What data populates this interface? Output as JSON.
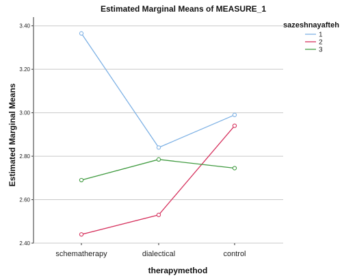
{
  "chart_data": {
    "type": "line",
    "title": "Estimated Marginal Means of MEASURE_1",
    "xlabel": "therapymethod",
    "ylabel": "Estimated Marginal Means",
    "categories": [
      "schematherapy",
      "dialectical",
      "control"
    ],
    "ylim": [
      2.4,
      3.44
    ],
    "yticks": [
      "2.40",
      "2.60",
      "2.80",
      "3.00",
      "3.20",
      "3.40"
    ],
    "grid": true,
    "legend": {
      "title": "sazeshnayafteh",
      "placement": "top-right"
    },
    "series": [
      {
        "name": "1",
        "color": "#7fb2e5",
        "values": [
          3.365,
          2.84,
          2.99
        ]
      },
      {
        "name": "2",
        "color": "#d6325e",
        "values": [
          2.44,
          2.53,
          2.94
        ]
      },
      {
        "name": "3",
        "color": "#3f9a3f",
        "values": [
          2.69,
          2.785,
          2.745
        ]
      }
    ]
  }
}
